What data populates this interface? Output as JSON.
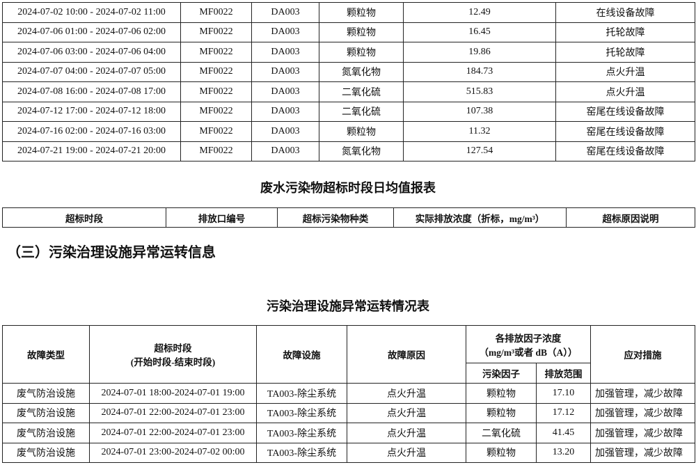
{
  "exceed_table": {
    "rows": [
      [
        "2024-07-02 10:00 - 2024-07-02 11:00",
        "MF0022",
        "DA003",
        "颗粒物",
        "12.49",
        "在线设备故障"
      ],
      [
        "2024-07-06 01:00 - 2024-07-06 02:00",
        "MF0022",
        "DA003",
        "颗粒物",
        "16.45",
        "托轮故障"
      ],
      [
        "2024-07-06 03:00 - 2024-07-06 04:00",
        "MF0022",
        "DA003",
        "颗粒物",
        "19.86",
        "托轮故障"
      ],
      [
        "2024-07-07 04:00 - 2024-07-07 05:00",
        "MF0022",
        "DA003",
        "氮氧化物",
        "184.73",
        "点火升温"
      ],
      [
        "2024-07-08 16:00 - 2024-07-08 17:00",
        "MF0022",
        "DA003",
        "二氧化硫",
        "515.83",
        "点火升温"
      ],
      [
        "2024-07-12 17:00 - 2024-07-12 18:00",
        "MF0022",
        "DA003",
        "二氧化硫",
        "107.38",
        "窑尾在线设备故障"
      ],
      [
        "2024-07-16 02:00 - 2024-07-16 03:00",
        "MF0022",
        "DA003",
        "颗粒物",
        "11.32",
        "窑尾在线设备故障"
      ],
      [
        "2024-07-21 19:00 - 2024-07-21 20:00",
        "MF0022",
        "DA003",
        "氮氧化物",
        "127.54",
        "窑尾在线设备故障"
      ]
    ]
  },
  "wastewater": {
    "title": "废水污染物超标时段日均值报表",
    "headers": [
      "超标时段",
      "排放口编号",
      "超标污染物种类",
      "实际排放浓度（折标，mg/m³）",
      "超标原因说明"
    ]
  },
  "section_heading": "（三）污染治理设施异常运转信息",
  "abnormal": {
    "title": "污染治理设施异常运转情况表",
    "headers": {
      "type": "故障类型",
      "period": "超标时段",
      "period_sub": "(开始时段-结束时段)",
      "facility": "故障设施",
      "reason": "故障原因",
      "conc": "各排放因子浓度",
      "conc_unit": "（mg/m³或者 dB（A））",
      "factor": "污染因子",
      "range": "排放范围",
      "measure": "应对措施"
    },
    "rows": [
      [
        "废气防治设施",
        "2024-07-01 18:00-2024-07-01 19:00",
        "TA003-除尘系统",
        "点火升温",
        "颗粒物",
        "17.10",
        "加强管理，减少故障"
      ],
      [
        "废气防治设施",
        "2024-07-01 22:00-2024-07-01 23:00",
        "TA003-除尘系统",
        "点火升温",
        "颗粒物",
        "17.12",
        "加强管理，减少故障"
      ],
      [
        "废气防治设施",
        "2024-07-01 22:00-2024-07-01 23:00",
        "TA003-除尘系统",
        "点火升温",
        "二氧化硫",
        "41.45",
        "加强管理，减少故障"
      ],
      [
        "废气防治设施",
        "2024-07-01 23:00-2024-07-02 00:00",
        "TA003-除尘系统",
        "点火升温",
        "颗粒物",
        "13.20",
        "加强管理，减少故障"
      ]
    ]
  }
}
